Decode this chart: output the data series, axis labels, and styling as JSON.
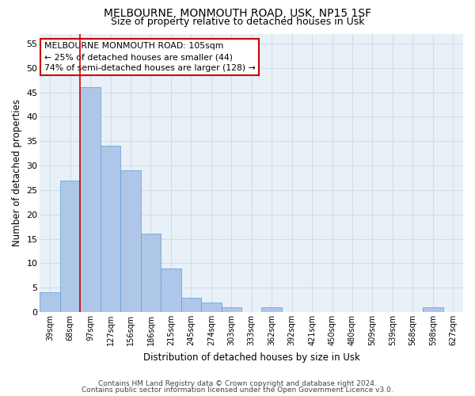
{
  "title1": "MELBOURNE, MONMOUTH ROAD, USK, NP15 1SF",
  "title2": "Size of property relative to detached houses in Usk",
  "xlabel": "Distribution of detached houses by size in Usk",
  "ylabel": "Number of detached properties",
  "categories": [
    "39sqm",
    "68sqm",
    "97sqm",
    "127sqm",
    "156sqm",
    "186sqm",
    "215sqm",
    "245sqm",
    "274sqm",
    "303sqm",
    "333sqm",
    "362sqm",
    "392sqm",
    "421sqm",
    "450sqm",
    "480sqm",
    "509sqm",
    "539sqm",
    "568sqm",
    "598sqm",
    "627sqm"
  ],
  "values": [
    4,
    27,
    46,
    34,
    29,
    16,
    9,
    3,
    2,
    1,
    0,
    1,
    0,
    0,
    0,
    0,
    0,
    0,
    0,
    1,
    0
  ],
  "bar_color": "#aec6e8",
  "bar_edge_color": "#5a9fd4",
  "vline_x": 1.5,
  "vline_color": "#cc0000",
  "annotation_text": "MELBOURNE MONMOUTH ROAD: 105sqm\n← 25% of detached houses are smaller (44)\n74% of semi-detached houses are larger (128) →",
  "annotation_box_color": "#ffffff",
  "annotation_box_edge": "#cc0000",
  "ylim": [
    0,
    57
  ],
  "yticks": [
    0,
    5,
    10,
    15,
    20,
    25,
    30,
    35,
    40,
    45,
    50,
    55
  ],
  "grid_color": "#d0dce8",
  "bg_color": "#e8f0f8",
  "footer1": "Contains HM Land Registry data © Crown copyright and database right 2024.",
  "footer2": "Contains public sector information licensed under the Open Government Licence v3.0."
}
